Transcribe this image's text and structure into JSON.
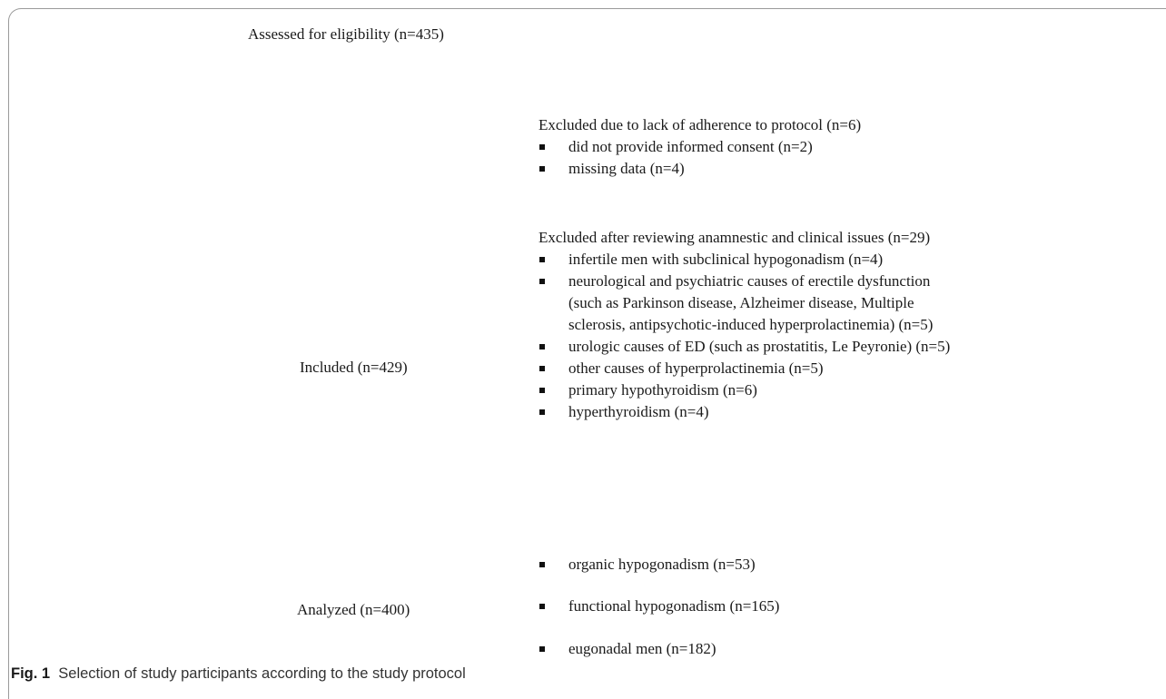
{
  "assessed_label": "Assessed for eligibility (n=435)",
  "exclusion_1": {
    "heading": "Excluded due to lack of adherence to protocol (n=6)",
    "items": [
      "did not provide informed consent (n=2)",
      "missing data (n=4)"
    ]
  },
  "exclusion_2": {
    "heading": "Excluded after reviewing anamnestic and clinical issues (n=29)",
    "items": [
      "infertile men with subclinical hypogonadism (n=4)",
      "neurological and psychiatric causes of erectile dysfunction (such as Parkinson disease, Alzheimer disease, Multiple sclerosis, antipsychotic-induced hyperprolactinemia) (n=5)",
      "urologic causes of ED (such as prostatitis, Le Peyronie) (n=5)",
      "other causes of hyperprolactinemia (n=5)",
      "primary hypothyroidism (n=6)",
      "hyperthyroidism (n=4)"
    ]
  },
  "included_label": "Included (n=429)",
  "analyzed_label": "Analyzed (n=400)",
  "outcomes": [
    "organic hypogonadism (n=53)",
    "functional hypogonadism (n=165)",
    "eugonadal men (n=182)"
  ],
  "caption": {
    "label": "Fig. 1",
    "text": "Selection of study participants according to the study protocol"
  }
}
